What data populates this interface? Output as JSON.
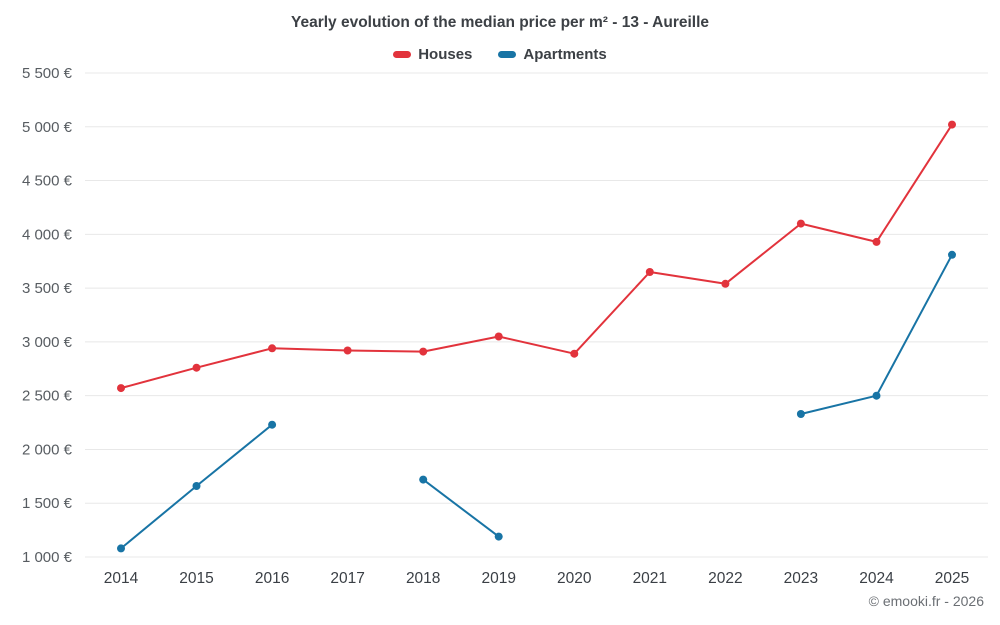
{
  "chart": {
    "title": "Yearly evolution of the median price per m² - 13 - Aureille",
    "copyright": "© emooki.fr - 2026"
  },
  "chart_data": {
    "type": "line",
    "title": "Yearly evolution of the median price per m² - 13 - Aureille",
    "x": [
      2014,
      2015,
      2016,
      2017,
      2018,
      2019,
      2020,
      2021,
      2022,
      2023,
      2024,
      2025
    ],
    "series": [
      {
        "name": "Houses",
        "color": "#e2333c",
        "values": [
          2570,
          2760,
          2940,
          2920,
          2910,
          3050,
          2890,
          3650,
          3540,
          4100,
          3930,
          5020
        ]
      },
      {
        "name": "Apartments",
        "color": "#1874a5",
        "values": [
          1080,
          1660,
          2230,
          null,
          1720,
          1190,
          null,
          null,
          null,
          2330,
          2500,
          3810
        ]
      }
    ],
    "xlabel": "",
    "ylabel": "",
    "ylim": [
      1000,
      5500
    ],
    "ytick_step": 500,
    "y_format": "{value} €",
    "grid": "horizontal",
    "legend_position": "top",
    "marker": "circle"
  }
}
